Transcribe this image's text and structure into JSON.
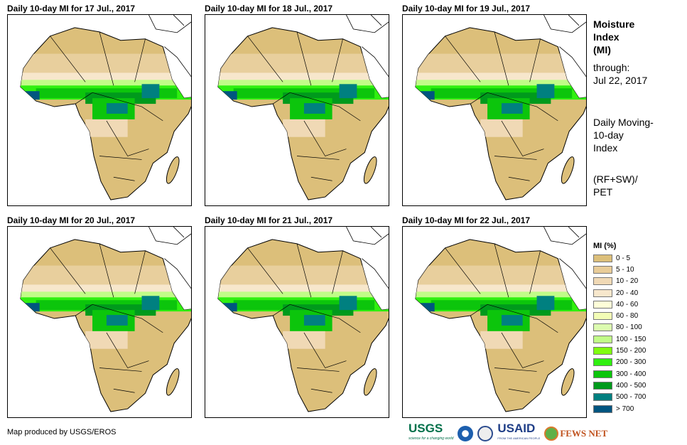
{
  "panels": [
    {
      "title": "Daily 10-day MI for 17 Jul., 2017"
    },
    {
      "title": "Daily 10-day MI for 18 Jul., 2017"
    },
    {
      "title": "Daily 10-day MI for 19 Jul., 2017"
    },
    {
      "title": "Daily 10-day MI for 20 Jul., 2017"
    },
    {
      "title": "Daily 10-day MI for 21 Jul., 2017"
    },
    {
      "title": "Daily 10-day MI for 22 Jul., 2017"
    }
  ],
  "side": {
    "title1": "Moisture",
    "title2": "Index",
    "title3": "(MI)",
    "through": "through:",
    "date": "Jul 22, 2017",
    "desc1": "Daily Moving-",
    "desc2": "10-day",
    "desc3": "Index",
    "formula1": "(RF+SW)/",
    "formula2": "PET"
  },
  "legend": {
    "title": "MI (%)",
    "items": [
      {
        "label": "0 - 5",
        "color": "#dcbf7a"
      },
      {
        "label": "5 - 10",
        "color": "#e8cc98"
      },
      {
        "label": "10 - 20",
        "color": "#f0d9b5"
      },
      {
        "label": "20 - 40",
        "color": "#f7e7cc"
      },
      {
        "label": "40 - 60",
        "color": "#fefed8"
      },
      {
        "label": "60 - 80",
        "color": "#f3fdb6"
      },
      {
        "label": "80 - 100",
        "color": "#dcfcb0"
      },
      {
        "label": "100 - 150",
        "color": "#c1fc88"
      },
      {
        "label": "150 - 200",
        "color": "#80fc10"
      },
      {
        "label": "200 - 300",
        "color": "#30f010"
      },
      {
        "label": "300 - 400",
        "color": "#0cc50c"
      },
      {
        "label": "400 - 500",
        "color": "#009a1c"
      },
      {
        "label": "500 - 700",
        "color": "#008080"
      },
      {
        "label": "> 700",
        "color": "#005580"
      }
    ]
  },
  "credit": "Map produced by USGS/EROS",
  "logos": {
    "usgs": "USGS",
    "usgs_tag": "science for a changing world",
    "usaid": "USAID",
    "usaid_tag": "FROM THE AMERICAN PEOPLE",
    "fews": "FEWS NET"
  }
}
